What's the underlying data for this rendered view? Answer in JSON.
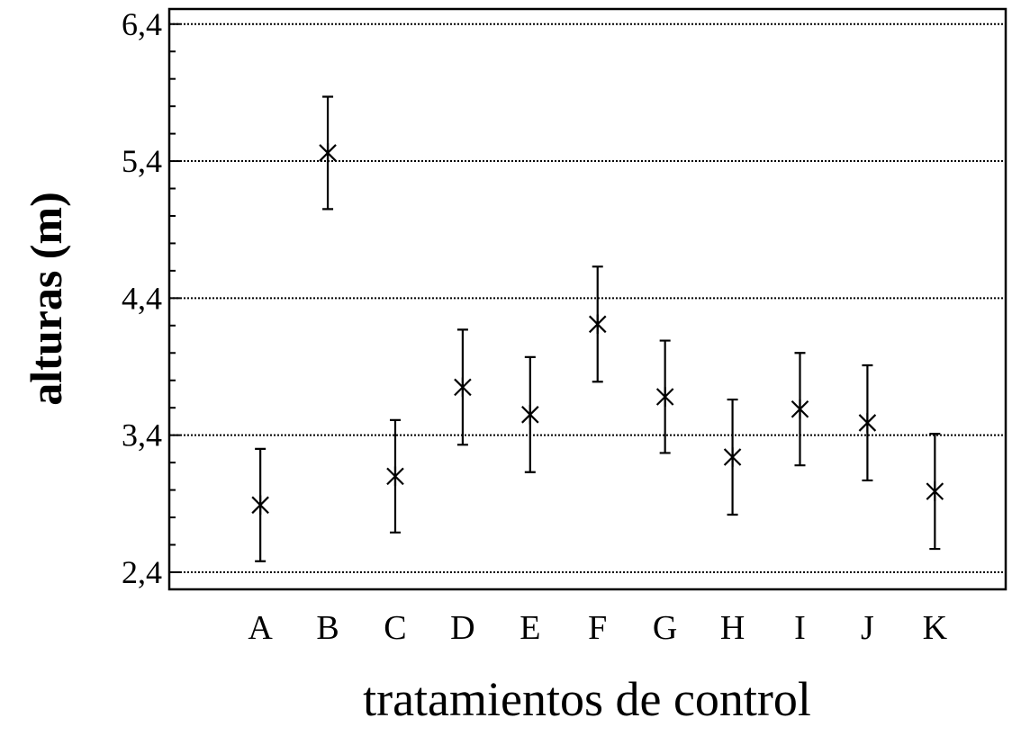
{
  "chart_data": {
    "type": "errorbar",
    "xlabel": "tratamientos de control",
    "ylabel": "alturas (m)",
    "categories": [
      "A",
      "B",
      "C",
      "D",
      "E",
      "F",
      "G",
      "H",
      "I",
      "J",
      "K"
    ],
    "values": [
      2.89,
      5.46,
      3.1,
      3.75,
      3.55,
      4.21,
      3.68,
      3.24,
      3.59,
      3.49,
      2.99
    ],
    "errors": [
      0.41,
      0.41,
      0.41,
      0.42,
      0.42,
      0.42,
      0.41,
      0.42,
      0.41,
      0.42,
      0.42
    ],
    "color": "#000000",
    "ylim": [
      2.275,
      6.51
    ],
    "yticks": [
      {
        "value": 2.4,
        "label": "2,4"
      },
      {
        "value": 3.4,
        "label": "3,4"
      },
      {
        "value": 4.4,
        "label": "4,4"
      },
      {
        "value": 5.4,
        "label": "5,4"
      },
      {
        "value": 6.4,
        "label": "6,4"
      }
    ],
    "yminorticks": [
      2.6,
      2.8,
      3.0,
      3.2,
      3.6,
      3.8,
      4.0,
      4.2,
      4.6,
      4.8,
      5.0,
      5.2,
      5.6,
      5.8,
      6.0,
      6.2
    ],
    "grid": true
  }
}
